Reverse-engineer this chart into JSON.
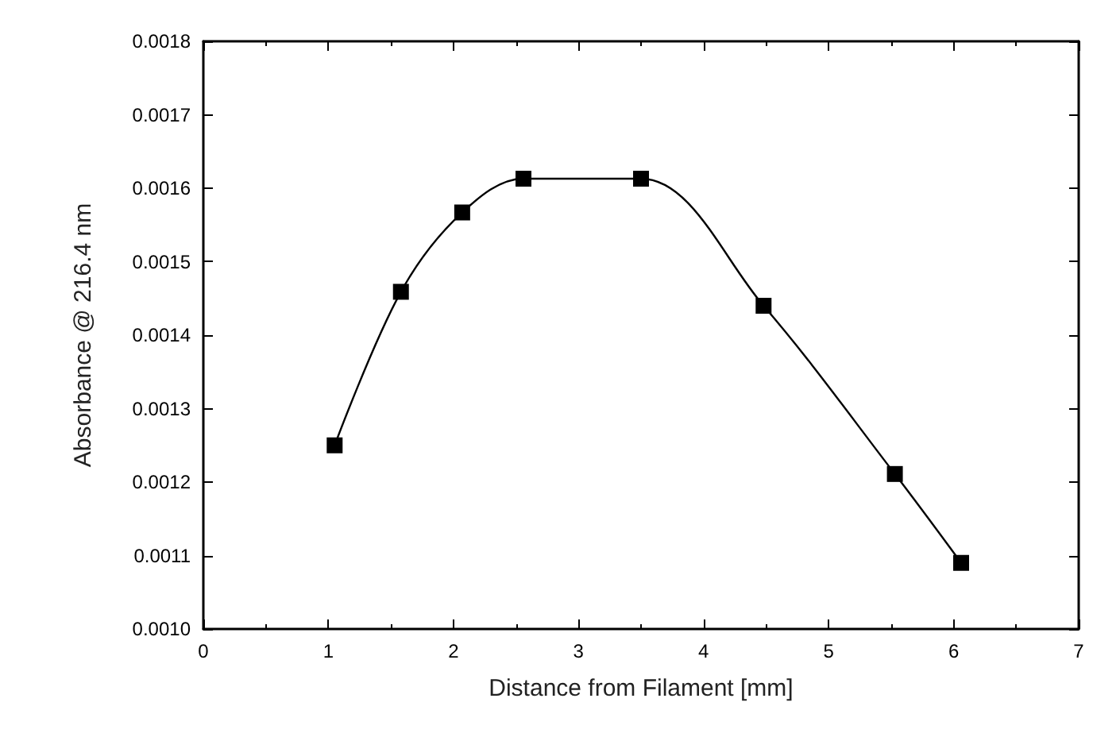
{
  "chart_data": {
    "type": "line",
    "xlabel": "Distance from Filament [mm]",
    "ylabel": "Absorbance @ 216.4 nm",
    "x": [
      1.05,
      1.58,
      2.07,
      2.56,
      3.5,
      4.48,
      5.53,
      6.06
    ],
    "series": [
      {
        "color": "#000000",
        "values": [
          0.00125,
          0.001459,
          0.001567,
          0.001613,
          0.001613,
          0.00144,
          0.001211,
          0.00109
        ]
      }
    ],
    "xlim": [
      0,
      7
    ],
    "xticks": [
      0,
      1,
      2,
      3,
      4,
      5,
      6,
      7
    ],
    "ylim": [
      0.001,
      0.0018
    ],
    "yticks": [
      {
        "value": 0.001,
        "label": "0.0010"
      },
      {
        "value": 0.0011,
        "label": "0.0011"
      },
      {
        "value": 0.0012,
        "label": "0.0012"
      },
      {
        "value": 0.0013,
        "label": "0.0013"
      },
      {
        "value": 0.0014,
        "label": "0.0014"
      },
      {
        "value": 0.0015,
        "label": "0.0015"
      },
      {
        "value": 0.0016,
        "label": "0.0016"
      },
      {
        "value": 0.0017,
        "label": "0.0017"
      },
      {
        "value": 0.0018,
        "label": "0.0018"
      }
    ],
    "marker": "square",
    "line_style": "solid"
  }
}
